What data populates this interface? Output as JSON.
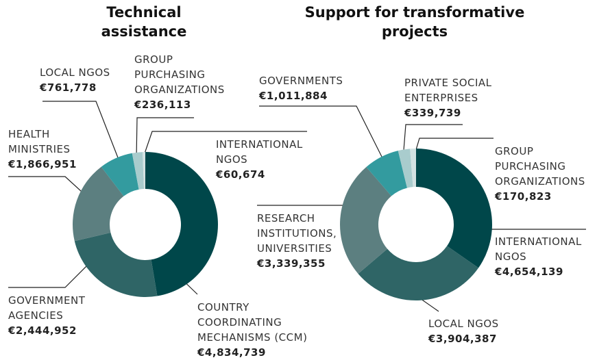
{
  "chart_data": [
    {
      "type": "donut",
      "title": "Technical assistance",
      "categories": [
        "COUNTRY COORDINATING MECHANISMS (CCM)",
        "GOVERNMENT AGENCIES",
        "HEALTH MINISTRIES",
        "LOCAL NGOS",
        "GROUP PURCHASING ORGANIZATIONS",
        "INTERNATIONAL NGOS"
      ],
      "values": [
        4834739,
        2444952,
        1866951,
        761778,
        236113,
        60674
      ],
      "value_labels": [
        "€4,834,739",
        "€2,444,952",
        "€1,866,951",
        "€761,778",
        "€236,113",
        "€60,674"
      ],
      "colors": [
        "#00474a",
        "#2f6566",
        "#5c7f80",
        "#339b9f",
        "#a9cccd",
        "#d3e2e2"
      ]
    },
    {
      "type": "donut",
      "title": "Support for transformative projects",
      "categories": [
        "INTERNATIONAL NGOS",
        "LOCAL NGOS",
        "RESEARCH INSTITUTIONS, UNIVERSITIES",
        "GOVERNMENTS",
        "PRIVATE SOCIAL ENTERPRISES",
        "GROUP PURCHASING ORGANIZATIONS"
      ],
      "values": [
        4654139,
        3904387,
        3339355,
        1011884,
        339739,
        170823
      ],
      "value_labels": [
        "€4,654,139",
        "€3,904,387",
        "€3,339,355",
        "€1,011,884",
        "€339,739",
        "€170,823"
      ],
      "colors": [
        "#00474a",
        "#2f6566",
        "#5c7f80",
        "#339b9f",
        "#a9cccd",
        "#d3e2e2"
      ]
    }
  ]
}
